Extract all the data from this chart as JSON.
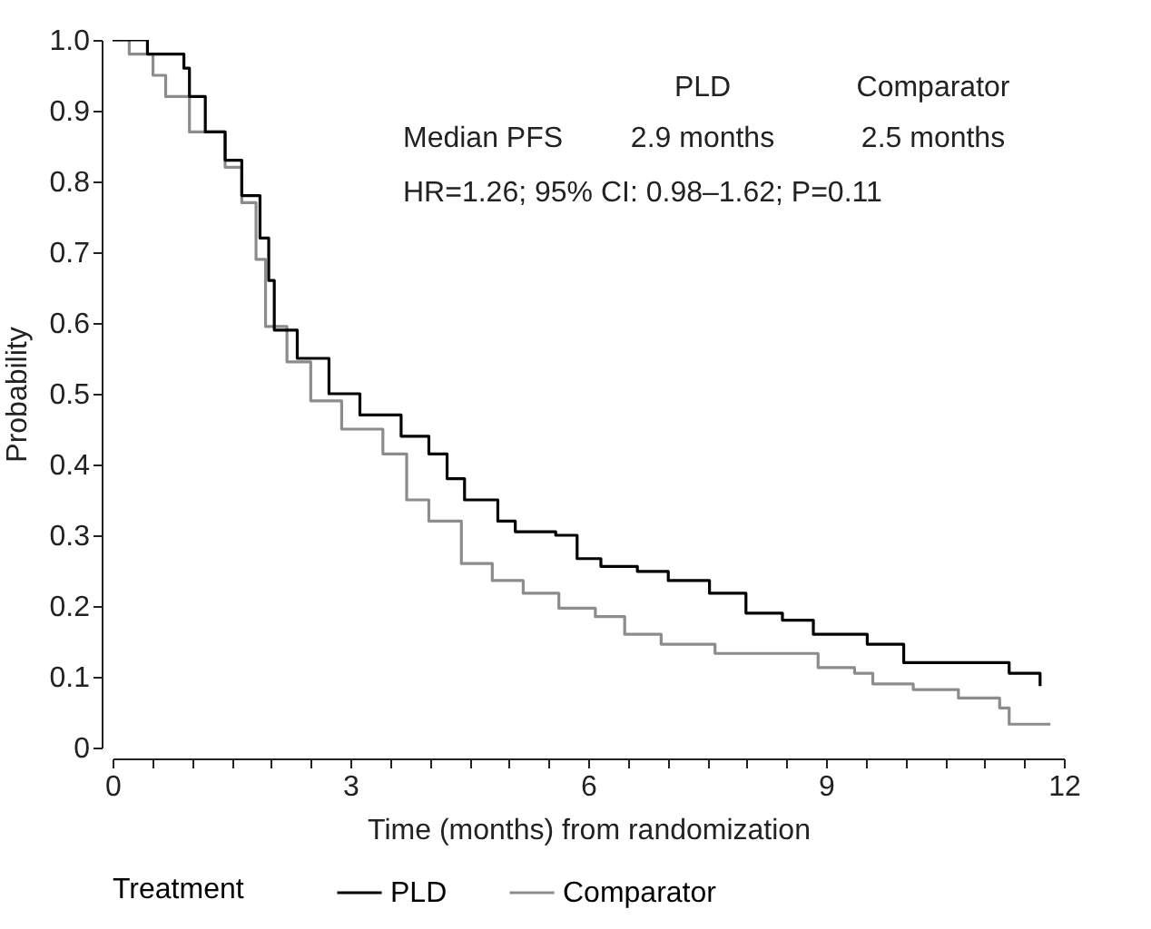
{
  "chart_data": {
    "type": "step",
    "xlabel": "Time (months) from randomization",
    "ylabel": "Probability",
    "legend_title": "Treatment",
    "legend": "bottom",
    "grid": false,
    "xlim": [
      0,
      12
    ],
    "xticks": [
      0,
      {
        "value": 0.5,
        "label": null
      },
      {
        "value": 1,
        "label": null
      },
      {
        "value": 1.5,
        "label": null
      },
      {
        "value": 2,
        "label": null
      },
      {
        "value": 2.5,
        "label": null
      },
      3,
      {
        "value": 3.5,
        "label": null
      },
      {
        "value": 4,
        "label": null
      },
      {
        "value": 4.5,
        "label": null
      },
      {
        "value": 5,
        "label": null
      },
      {
        "value": 5.5,
        "label": null
      },
      6,
      {
        "value": 6.5,
        "label": null
      },
      {
        "value": 7,
        "label": null
      },
      {
        "value": 7.5,
        "label": null
      },
      {
        "value": 8,
        "label": null
      },
      {
        "value": 8.5,
        "label": null
      },
      9,
      {
        "value": 9.5,
        "label": null
      },
      {
        "value": 10,
        "label": null
      },
      {
        "value": 10.5,
        "label": null
      },
      {
        "value": 11,
        "label": null
      },
      {
        "value": 11.5,
        "label": null
      },
      12
    ],
    "ylim": [
      0,
      1
    ],
    "yticks": [
      0,
      0.1,
      0.2,
      0.3,
      0.4,
      0.5,
      0.6,
      0.7,
      0.8,
      0.9,
      {
        "value": 1,
        "label": "1.0"
      }
    ],
    "annotations": [
      "PLD",
      "Comparator",
      "Median PFS",
      "2.9 months",
      "2.5 months",
      "HR=1.26; 95% CI: 0.98–1.62; P=0.11"
    ],
    "series": [
      {
        "name": "PLD",
        "color": "#000000",
        "x": [
          0,
          0.44,
          0.9,
          0.97,
          1.17,
          1.42,
          1.63,
          1.86,
          1.97,
          2.04,
          2.33,
          2.73,
          3.12,
          3.64,
          3.99,
          4.22,
          4.44,
          4.86,
          5.08,
          5.59,
          5.86,
          6.16,
          6.62,
          7.01,
          7.53,
          7.99,
          8.45,
          8.84,
          9.52,
          9.98,
          11.26,
          11.31,
          11.7
        ],
        "values": [
          1,
          0.98,
          0.96,
          0.92,
          0.87,
          0.83,
          0.78,
          0.72,
          0.66,
          0.59,
          0.55,
          0.5,
          0.47,
          0.44,
          0.415,
          0.38,
          0.35,
          0.32,
          0.305,
          0.3,
          0.267,
          0.256,
          0.249,
          0.236,
          0.218,
          0.19,
          0.18,
          0.16,
          0.146,
          0.12,
          0.12,
          0.105,
          0.087
        ]
      },
      {
        "name": "Comparator",
        "color": "#8c8c8c",
        "x": [
          0,
          0.21,
          0.51,
          0.67,
          0.97,
          1.42,
          1.63,
          1.81,
          1.93,
          2.2,
          2.5,
          2.89,
          3.41,
          3.71,
          3.99,
          4.4,
          4.79,
          5.18,
          5.63,
          6.09,
          6.46,
          6.92,
          7.6,
          8.29,
          8.9,
          9.36,
          9.59,
          10.1,
          10.67,
          11.19,
          11.31,
          11.83
        ],
        "values": [
          1,
          0.98,
          0.95,
          0.92,
          0.87,
          0.82,
          0.77,
          0.69,
          0.595,
          0.545,
          0.49,
          0.45,
          0.415,
          0.35,
          0.32,
          0.26,
          0.236,
          0.218,
          0.197,
          0.185,
          0.16,
          0.146,
          0.133,
          0.133,
          0.113,
          0.105,
          0.09,
          0.082,
          0.07,
          0.056,
          0.033,
          0.033
        ]
      }
    ]
  }
}
